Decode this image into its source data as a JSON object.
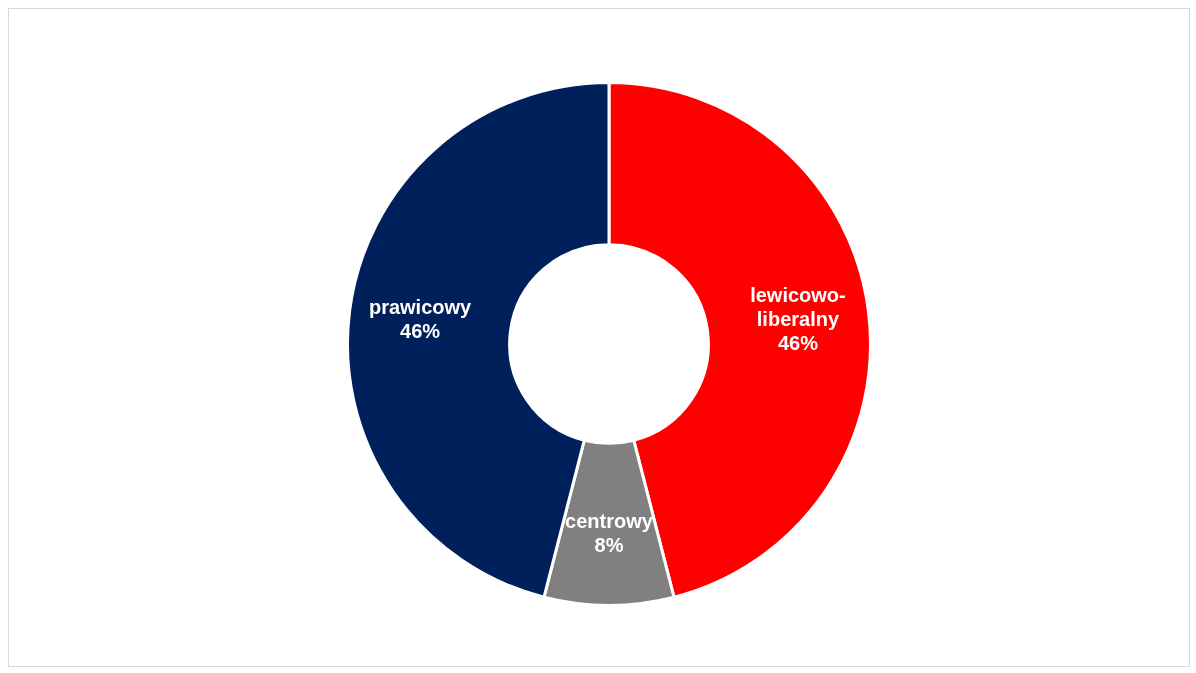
{
  "chart_data": {
    "type": "donut",
    "categories": [
      "lewicowo-liberalny",
      "centrowy",
      "prawicowy"
    ],
    "values": [
      46,
      8,
      46
    ],
    "colors": [
      "#ff0000",
      "#808080",
      "#00205b"
    ],
    "value_labels": [
      "46%",
      "8%",
      "46%"
    ]
  }
}
